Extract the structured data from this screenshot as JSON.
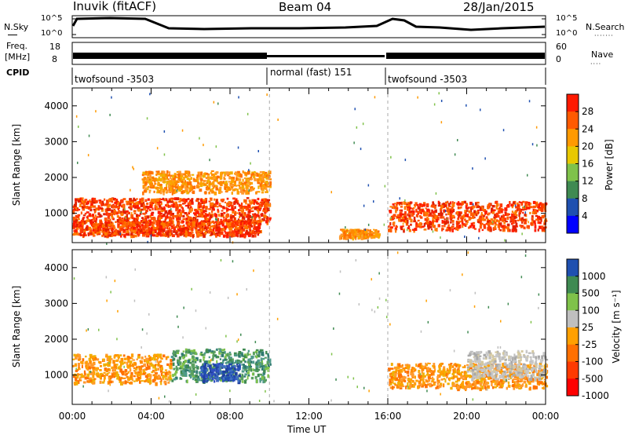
{
  "header": {
    "station": "Inuvik (fitACF)",
    "beam": "Beam 04",
    "date": "28/Jan/2015"
  },
  "noise_panel": {
    "left_label": "N.Sky",
    "right_label": "N.Search",
    "left_ticks": [
      "10^5",
      "10^0"
    ],
    "right_ticks": [
      "10^5",
      "10^0"
    ]
  },
  "freq_panel": {
    "left_label_line1": "Freq.",
    "left_label_line2": "[MHz]",
    "right_label": "Nave",
    "left_ticks": [
      "18",
      "8"
    ],
    "right_ticks": [
      "60",
      "0"
    ]
  },
  "cpid": {
    "label": "CPID",
    "modes": [
      {
        "name": "twofsound -3503",
        "start_hour": 0,
        "end_hour": 10
      },
      {
        "name": "normal (fast) 151",
        "start_hour": 10,
        "end_hour": 16
      },
      {
        "name": "twofsound -3503",
        "start_hour": 16,
        "end_hour": 24
      }
    ]
  },
  "chart_data": [
    {
      "type": "heatmap",
      "panel": "power",
      "ylabel": "Slant Range [km]",
      "xlim_hours": [
        0,
        24
      ],
      "ylim": [
        180,
        4500
      ],
      "yticks": [
        1000,
        2000,
        3000,
        4000
      ],
      "colorbar_label": "Power [dB]",
      "colorbar_ticks": [
        "28",
        "24",
        "20",
        "16",
        "12",
        "8",
        "4"
      ],
      "colorbar_colors": [
        "#ff1a00",
        "#ff5a00",
        "#ff9a00",
        "#e8c800",
        "#7fc24a",
        "#3f8a52",
        "#1f50b0",
        "#0000ff"
      ],
      "regions": [
        {
          "x": [
            0,
            10
          ],
          "y_center": 1100,
          "spread": 350,
          "dominant": "red"
        },
        {
          "x": [
            3.5,
            10
          ],
          "y_center": 1900,
          "spread": 300,
          "dominant": "orange"
        },
        {
          "x": [
            0,
            9.5
          ],
          "y_center": 600,
          "spread": 200,
          "dominant": "red"
        },
        {
          "x": [
            16,
            24
          ],
          "y_center": 950,
          "spread": 400,
          "dominant": "red"
        },
        {
          "x": [
            13.5,
            15.5
          ],
          "y_center": 450,
          "spread": 120,
          "dominant": "orange"
        }
      ]
    },
    {
      "type": "heatmap",
      "panel": "velocity",
      "xlabel": "Time UT",
      "ylabel": "Slant Range [km]",
      "xlim_hours": [
        0,
        24
      ],
      "ylim": [
        180,
        4500
      ],
      "yticks": [
        1000,
        2000,
        3000,
        4000
      ],
      "xticks": [
        "00:00",
        "04:00",
        "08:00",
        "12:00",
        "16:00",
        "20:00",
        "00:00"
      ],
      "colorbar_label": "Velocity [m s⁻¹]",
      "colorbar_ticks": [
        "1000",
        "500",
        "100",
        "25",
        "-25",
        "-100",
        "-500",
        "-1000"
      ],
      "colorbar_colors": [
        "#1f50b0",
        "#3f8a52",
        "#7fc24a",
        "#bfbfbf",
        "#ffa000",
        "#ff7000",
        "#ff3a00",
        "#ff0000"
      ],
      "regions": [
        {
          "x": [
            0,
            5
          ],
          "y_center": 1200,
          "spread": 400,
          "dominant": "orange"
        },
        {
          "x": [
            5,
            10
          ],
          "y_center": 1300,
          "spread": 450,
          "dominant": "green"
        },
        {
          "x": [
            6.5,
            8.5
          ],
          "y_center": 1100,
          "spread": 250,
          "dominant": "blue"
        },
        {
          "x": [
            16,
            24
          ],
          "y_center": 1000,
          "spread": 350,
          "dominant": "orange"
        },
        {
          "x": [
            20,
            24
          ],
          "y_center": 1300,
          "spread": 400,
          "dominant": "grey"
        }
      ]
    }
  ]
}
